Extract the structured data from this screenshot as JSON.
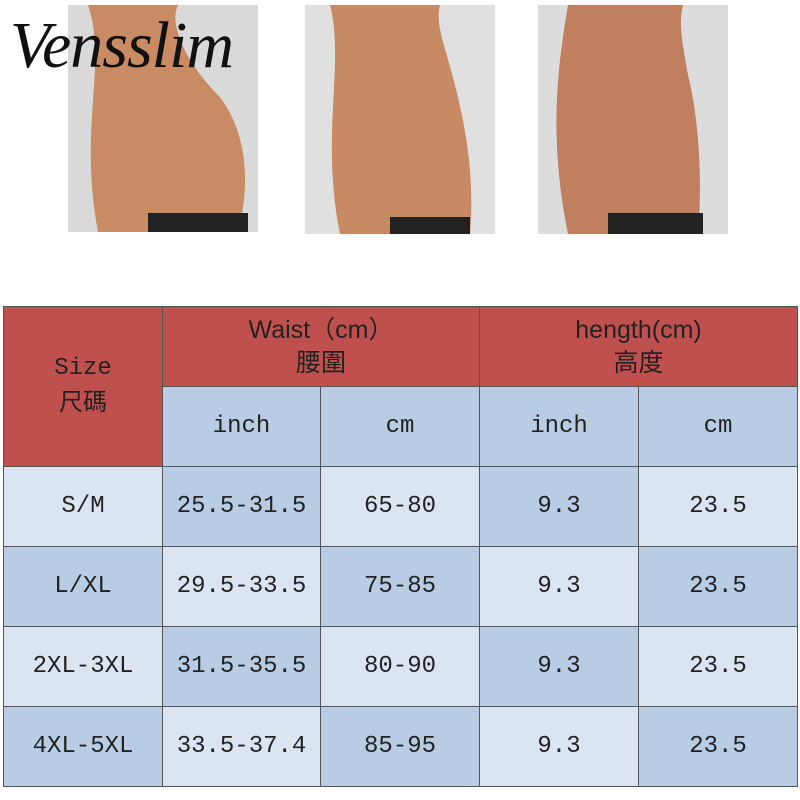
{
  "brand": "Vensslim",
  "table": {
    "header": {
      "size": [
        "Size",
        "尺碼"
      ],
      "waist": [
        "Waist（cm）",
        "腰圍"
      ],
      "length": [
        "hength(cm)",
        "高度"
      ],
      "subheaders": [
        "inch",
        "cm",
        "inch",
        "cm"
      ]
    },
    "rows": [
      [
        "S/M",
        "25.5-31.5",
        "65-80",
        "9.3",
        "23.5"
      ],
      [
        "L/XL",
        "29.5-33.5",
        "75-85",
        "9.3",
        "23.5"
      ],
      [
        "2XL-3XL",
        "31.5-35.5",
        "80-90",
        "9.3",
        "23.5"
      ],
      [
        "4XL-5XL",
        "33.5-37.4",
        "85-95",
        "9.3",
        "23.5"
      ]
    ]
  }
}
